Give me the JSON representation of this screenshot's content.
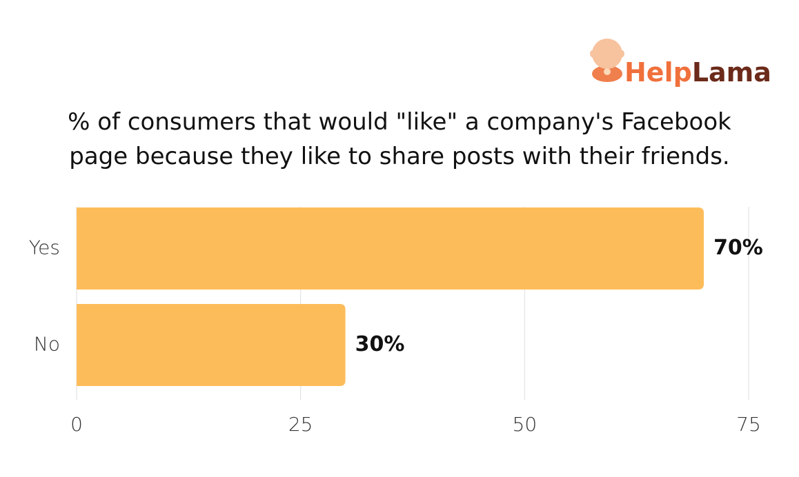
{
  "logo_text": [
    "Help",
    "Lama"
  ],
  "chart_data": {
    "type": "bar",
    "orientation": "horizontal",
    "title": "% of consumers that would \"like\" a company's Facebook page because they like to share posts with their friends.",
    "categories": [
      "Yes",
      "No"
    ],
    "values": [
      70,
      30
    ],
    "value_labels": [
      "70%",
      "30%"
    ],
    "color": "#fdbc5a",
    "xlim": [
      0,
      75
    ],
    "xticks": [
      0,
      25,
      50,
      75
    ],
    "grid": true
  }
}
